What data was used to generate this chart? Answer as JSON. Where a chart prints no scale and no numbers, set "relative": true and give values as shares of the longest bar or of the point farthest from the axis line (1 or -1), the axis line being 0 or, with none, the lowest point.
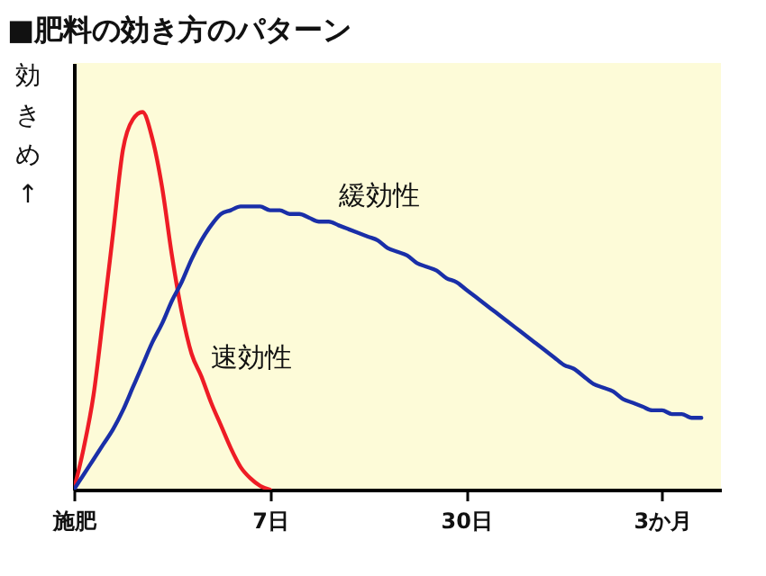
{
  "chart_data": {
    "type": "line",
    "title": "■肥料の効き方のパターン",
    "ylabel": "効きめ↑",
    "relative": true,
    "categories": [
      "施肥",
      null,
      null,
      null,
      null,
      null,
      null,
      null,
      null,
      null,
      null,
      null,
      null,
      null,
      null,
      null,
      null,
      null,
      null,
      null,
      "7日",
      null,
      null,
      null,
      null,
      null,
      null,
      null,
      null,
      null,
      null,
      null,
      null,
      null,
      null,
      null,
      null,
      null,
      null,
      null,
      "30日",
      null,
      null,
      null,
      null,
      null,
      null,
      null,
      null,
      null,
      null,
      null,
      null,
      null,
      null,
      null,
      null,
      null,
      null,
      null,
      "3か月",
      null,
      null,
      null,
      null,
      null,
      null
    ],
    "series": [
      {
        "name": "速効性",
        "color": "#ee1c25",
        "values": [
          0,
          0.11,
          0.25,
          0.46,
          0.68,
          0.9,
          0.98,
          1,
          0.93,
          0.8,
          0.62,
          0.47,
          0.36,
          0.3,
          0.23,
          0.17,
          0.11,
          0.06,
          0.03,
          0.01,
          0,
          null,
          null,
          null,
          null,
          null,
          null,
          null,
          null,
          null,
          null,
          null,
          null,
          null,
          null,
          null,
          null,
          null,
          null,
          null,
          null,
          null,
          null,
          null,
          null,
          null,
          null,
          null,
          null,
          null,
          null,
          null,
          null,
          null,
          null,
          null,
          null,
          null,
          null,
          null,
          null,
          null,
          null,
          null,
          null,
          null,
          null
        ]
      },
      {
        "name": "緩効性",
        "color": "#1a2fa8",
        "values": [
          0,
          0.04,
          0.08,
          0.12,
          0.16,
          0.21,
          0.27,
          0.33,
          0.39,
          0.44,
          0.5,
          0.55,
          0.61,
          0.66,
          0.7,
          0.73,
          0.74,
          0.75,
          0.75,
          0.75,
          0.74,
          0.74,
          0.73,
          0.73,
          0.72,
          0.71,
          0.71,
          0.7,
          0.69,
          0.68,
          0.67,
          0.66,
          0.64,
          0.63,
          0.62,
          0.6,
          0.59,
          0.58,
          0.56,
          0.55,
          0.53,
          0.51,
          0.49,
          0.47,
          0.45,
          0.43,
          0.41,
          0.39,
          0.37,
          0.35,
          0.33,
          0.32,
          0.3,
          0.28,
          0.27,
          0.26,
          0.24,
          0.23,
          0.22,
          0.21,
          0.21,
          0.2,
          0.2,
          0.19,
          0.19,
          null,
          null
        ]
      }
    ],
    "grid": false,
    "legend": false,
    "marker": "none",
    "line_style": "solid"
  }
}
